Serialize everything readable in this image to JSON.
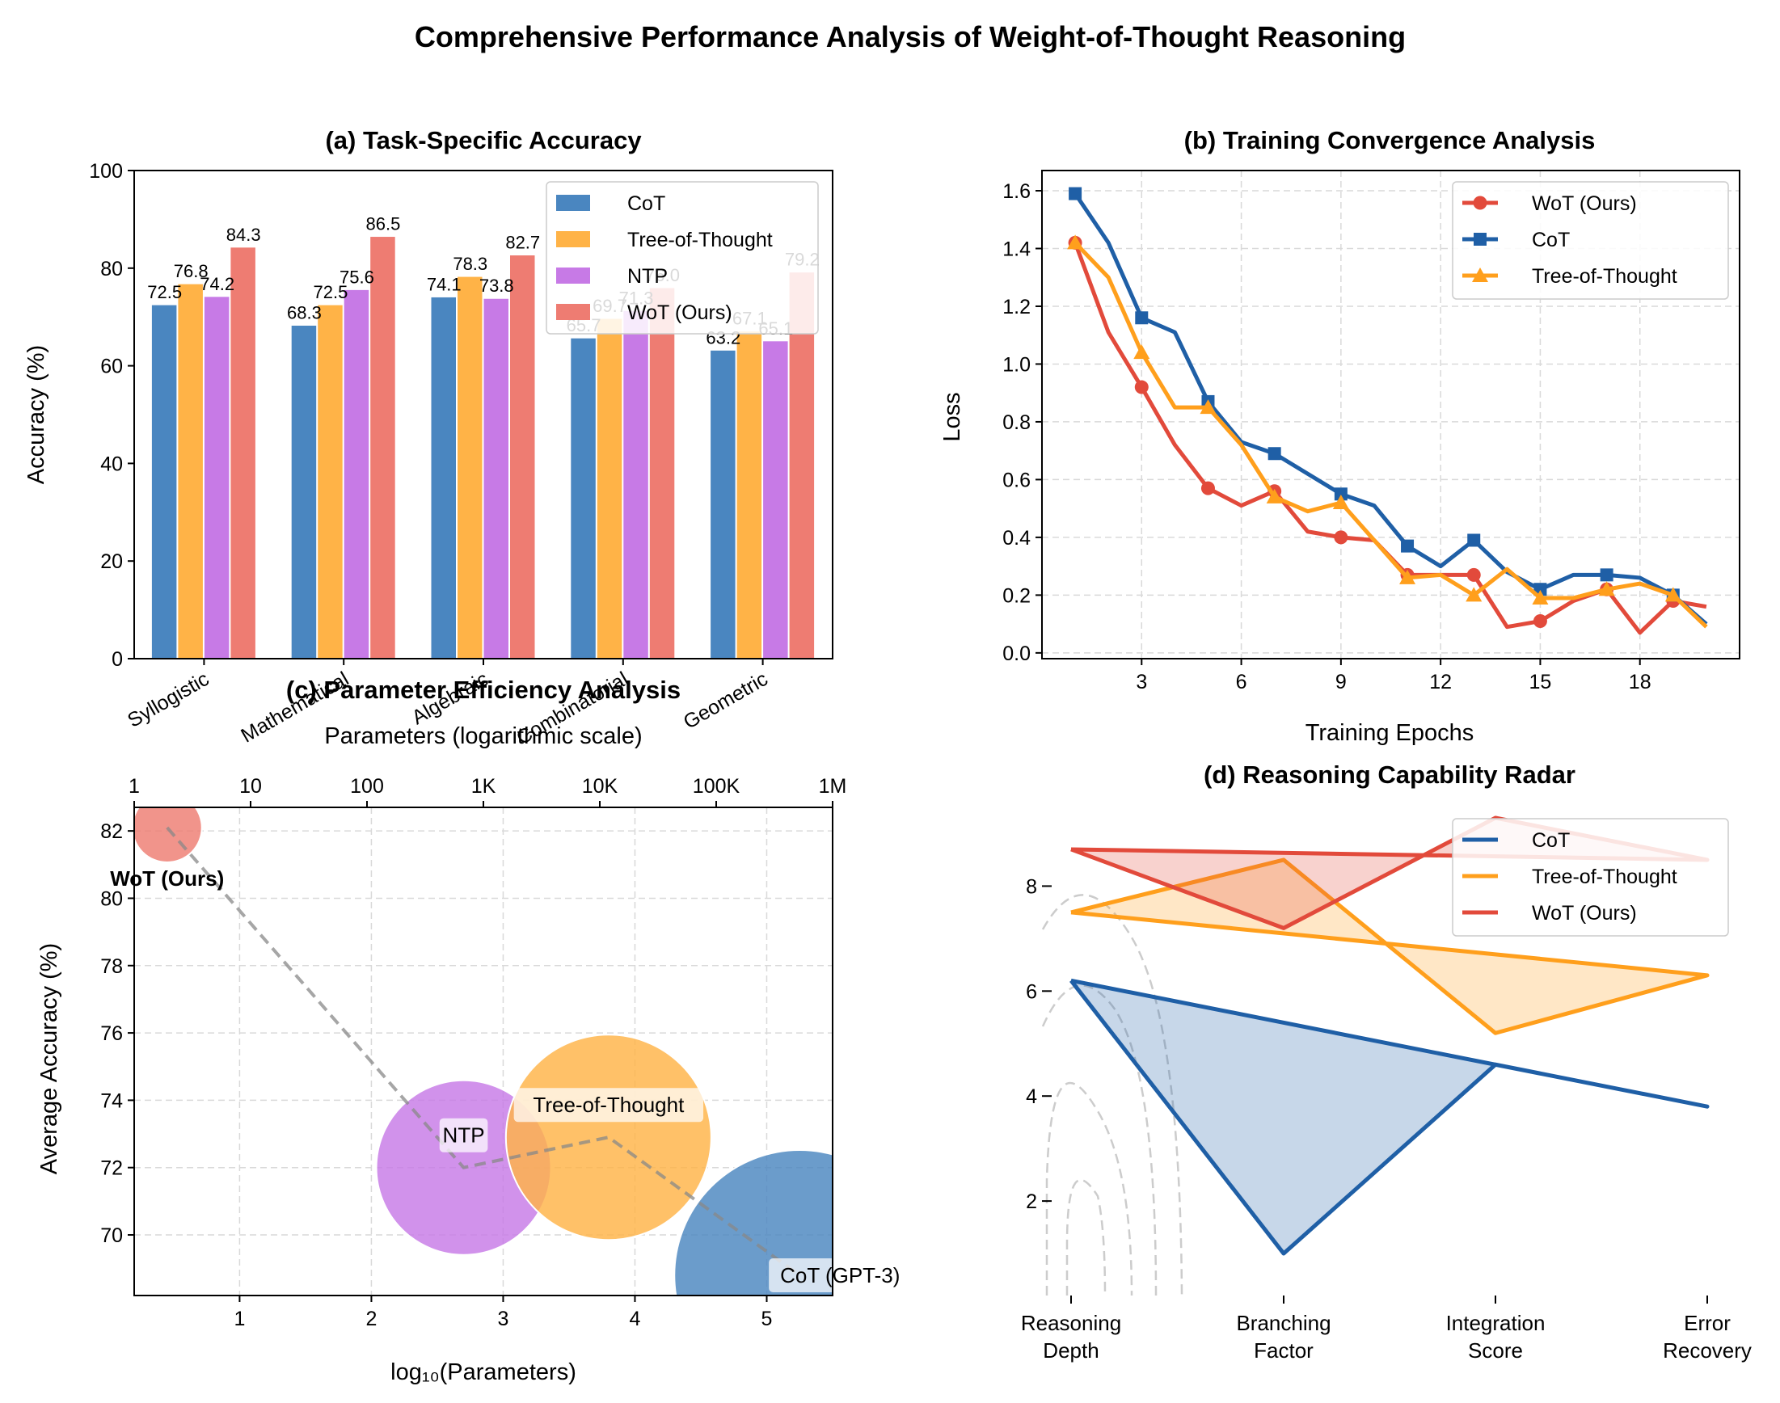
{
  "suptitle": "Comprehensive Performance Analysis of Weight-of-Thought Reasoning",
  "colors": {
    "cot": "#1f5fa6",
    "cot_bar": "#4a86c0",
    "tot": "#ff9f1c",
    "tot_bar": "#ffb347",
    "ntp": "#c77ae6",
    "wot": "#e24a3b",
    "wot_bar": "#ee7c72",
    "grid": "#d9d9d9"
  },
  "chart_data": [
    {
      "id": "a",
      "type": "bar",
      "title": "(a) Task-Specific Accuracy",
      "xlabel": "",
      "ylabel": "Accuracy (%)",
      "ylim": [
        0,
        100
      ],
      "yticks": [
        "0",
        "20",
        "40",
        "60",
        "80",
        "100"
      ],
      "categories": [
        "Syllogistic",
        "Mathematical",
        "Algebraic",
        "Combinatorial",
        "Geometric"
      ],
      "series": [
        {
          "name": "CoT",
          "values": [
            72.5,
            68.3,
            74.1,
            65.7,
            63.2
          ],
          "labels": [
            "72.5",
            "68.3",
            "74.1",
            "65.7",
            "63.2"
          ]
        },
        {
          "name": "Tree-of-Thought",
          "values": [
            76.8,
            72.5,
            78.3,
            69.7,
            67.1
          ],
          "labels": [
            "76.8",
            "72.5",
            "78.3",
            "69.7",
            "67.1"
          ]
        },
        {
          "name": "NTP",
          "values": [
            74.2,
            75.6,
            73.8,
            71.3,
            65.1
          ],
          "labels": [
            "74.2",
            "75.6",
            "73.8",
            "71.3",
            "65.1"
          ]
        },
        {
          "name": "WoT (Ours)",
          "values": [
            84.3,
            86.5,
            82.7,
            76.0,
            79.2
          ],
          "labels": [
            "84.3",
            "86.5",
            "82.7",
            "76.0",
            "79.2"
          ]
        }
      ],
      "legend": "top-right"
    },
    {
      "id": "b",
      "type": "line",
      "title": "(b) Training Convergence Analysis",
      "xlabel": "Training Epochs",
      "ylabel": "Loss",
      "xlim": [
        0,
        21
      ],
      "ylim": [
        -0.02,
        1.67
      ],
      "xticks": [
        "3",
        "6",
        "9",
        "12",
        "15",
        "18"
      ],
      "yticks": [
        "0.0",
        "0.2",
        "0.4",
        "0.6",
        "0.8",
        "1.0",
        "1.2",
        "1.4",
        "1.6"
      ],
      "x": [
        1,
        2,
        3,
        4,
        5,
        6,
        7,
        8,
        9,
        10,
        11,
        12,
        13,
        14,
        15,
        16,
        17,
        18,
        19,
        20
      ],
      "series": [
        {
          "name": "WoT (Ours)",
          "values": [
            1.42,
            1.11,
            0.92,
            0.72,
            0.57,
            0.51,
            0.56,
            0.42,
            0.4,
            0.39,
            0.27,
            0.27,
            0.27,
            0.09,
            0.11,
            0.18,
            0.22,
            0.07,
            0.18,
            0.16
          ]
        },
        {
          "name": "CoT",
          "values": [
            1.59,
            1.42,
            1.16,
            1.11,
            0.87,
            0.73,
            0.69,
            0.62,
            0.55,
            0.51,
            0.37,
            0.3,
            0.39,
            0.28,
            0.22,
            0.27,
            0.27,
            0.26,
            0.2,
            0.1
          ]
        },
        {
          "name": "Tree-of-Thought",
          "values": [
            1.42,
            1.3,
            1.04,
            0.85,
            0.85,
            0.72,
            0.54,
            0.49,
            0.52,
            0.39,
            0.26,
            0.27,
            0.2,
            0.29,
            0.19,
            0.19,
            0.22,
            0.24,
            0.2,
            0.09
          ]
        }
      ],
      "grid": true,
      "legend": "top-right"
    },
    {
      "id": "c",
      "type": "scatter",
      "title": "(c) Parameter Efficiency Analysis",
      "xlabel": "log₁₀(Parameters)",
      "ylabel": "Average Accuracy (%)",
      "top_xlabel": "Parameters (logarithmic scale)",
      "top_xticks": [
        "1",
        "10",
        "100",
        "1K",
        "10K",
        "100K",
        "1M"
      ],
      "xlim": [
        0.2,
        5.5
      ],
      "ylim": [
        68.2,
        82.7
      ],
      "xticks": [
        "1",
        "2",
        "3",
        "4",
        "5"
      ],
      "yticks": [
        "70",
        "72",
        "74",
        "76",
        "78",
        "80",
        "82"
      ],
      "points": [
        {
          "name": "WoT (Ours)",
          "x": 0.45,
          "y": 82.1
        },
        {
          "name": "NTP",
          "x": 2.7,
          "y": 72.0
        },
        {
          "name": "Tree-of-Thought",
          "x": 3.8,
          "y": 72.9
        },
        {
          "name": "CoT (GPT-3)",
          "x": 5.25,
          "y": 68.8
        }
      ],
      "grid": true
    },
    {
      "id": "d",
      "type": "line",
      "title": "(d) Reasoning Capability Radar",
      "categories": [
        "Reasoning Depth",
        "Branching Factor",
        "Integration Score",
        "Error Recovery"
      ],
      "category_lines": [
        [
          "Reasoning",
          "Depth"
        ],
        [
          "Branching",
          "Factor"
        ],
        [
          "Integration",
          "Score"
        ],
        [
          "Error",
          "Recovery"
        ]
      ],
      "ylim": [
        0.2,
        9.5
      ],
      "yticks": [
        "2",
        "4",
        "6",
        "8"
      ],
      "series": [
        {
          "name": "CoT",
          "values": [
            6.2,
            1.0,
            4.6,
            3.8
          ]
        },
        {
          "name": "Tree-of-Thought",
          "values": [
            7.5,
            8.5,
            5.2,
            6.3
          ]
        },
        {
          "name": "WoT (Ours)",
          "values": [
            8.7,
            7.2,
            9.3,
            8.5
          ]
        }
      ],
      "legend": "top-right"
    }
  ]
}
